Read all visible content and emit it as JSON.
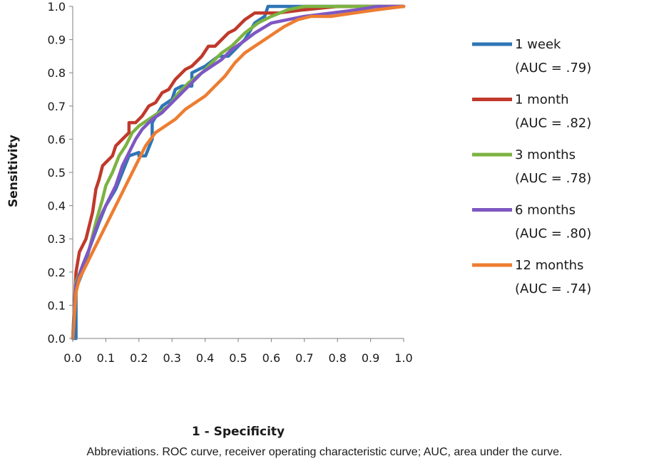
{
  "chart_data": {
    "type": "line",
    "title": "",
    "xlabel": "1 - Specificity",
    "ylabel": "Sensitivity",
    "xlim": [
      0,
      1
    ],
    "ylim": [
      0,
      1
    ],
    "x_ticks": [
      "0.0",
      "0.1",
      "0.2",
      "0.3",
      "0.4",
      "0.5",
      "0.6",
      "0.7",
      "0.8",
      "0.9",
      "1.0"
    ],
    "y_ticks": [
      "0.0",
      "0.1",
      "0.2",
      "0.3",
      "0.4",
      "0.5",
      "0.6",
      "0.7",
      "0.8",
      "0.9",
      "1.0"
    ],
    "grid": false,
    "legend_position": "right",
    "series": [
      {
        "name": "1 week",
        "auc_label": "(AUC = .79)",
        "color": "#2e75b6",
        "x": [
          0,
          0.01,
          0.01,
          0.03,
          0.05,
          0.08,
          0.1,
          0.13,
          0.15,
          0.17,
          0.2,
          0.2,
          0.22,
          0.24,
          0.24,
          0.27,
          0.3,
          0.31,
          0.33,
          0.36,
          0.36,
          0.4,
          0.44,
          0.47,
          0.5,
          0.52,
          0.55,
          0.58,
          0.59,
          0.62,
          0.7,
          0.8,
          0.9,
          1.0
        ],
        "y": [
          0,
          0,
          0.15,
          0.2,
          0.27,
          0.35,
          0.4,
          0.45,
          0.5,
          0.55,
          0.56,
          0.55,
          0.55,
          0.6,
          0.65,
          0.7,
          0.72,
          0.75,
          0.76,
          0.76,
          0.8,
          0.82,
          0.85,
          0.85,
          0.88,
          0.9,
          0.95,
          0.97,
          1.0,
          1.0,
          1.0,
          1.0,
          1.0,
          1.0
        ]
      },
      {
        "name": "1 month",
        "auc_label": "(AUC = .82)",
        "color": "#c0392b",
        "x": [
          0,
          0.01,
          0.02,
          0.04,
          0.06,
          0.07,
          0.08,
          0.09,
          0.1,
          0.12,
          0.13,
          0.15,
          0.17,
          0.17,
          0.19,
          0.21,
          0.23,
          0.25,
          0.27,
          0.29,
          0.31,
          0.33,
          0.34,
          0.36,
          0.39,
          0.41,
          0.43,
          0.45,
          0.47,
          0.49,
          0.52,
          0.55,
          0.58,
          0.62,
          0.7,
          0.8,
          0.9,
          1.0
        ],
        "y": [
          0,
          0.2,
          0.26,
          0.3,
          0.38,
          0.45,
          0.48,
          0.52,
          0.53,
          0.55,
          0.58,
          0.6,
          0.62,
          0.65,
          0.65,
          0.67,
          0.7,
          0.71,
          0.74,
          0.75,
          0.78,
          0.8,
          0.81,
          0.82,
          0.85,
          0.88,
          0.88,
          0.9,
          0.92,
          0.93,
          0.96,
          0.98,
          0.98,
          0.98,
          0.99,
          1.0,
          1.0,
          1.0
        ]
      },
      {
        "name": "3 months",
        "auc_label": "(AUC = .78)",
        "color": "#7cb342",
        "x": [
          0,
          0.01,
          0.03,
          0.05,
          0.07,
          0.09,
          0.1,
          0.12,
          0.14,
          0.16,
          0.18,
          0.2,
          0.23,
          0.26,
          0.29,
          0.32,
          0.35,
          0.39,
          0.42,
          0.45,
          0.48,
          0.52,
          0.56,
          0.6,
          0.65,
          0.7,
          0.8,
          0.9,
          1.0
        ],
        "y": [
          0,
          0.17,
          0.22,
          0.27,
          0.35,
          0.42,
          0.46,
          0.5,
          0.55,
          0.58,
          0.62,
          0.64,
          0.66,
          0.68,
          0.7,
          0.74,
          0.77,
          0.8,
          0.83,
          0.86,
          0.88,
          0.92,
          0.95,
          0.97,
          0.99,
          1.0,
          1.0,
          1.0,
          1.0
        ]
      },
      {
        "name": "6 months",
        "auc_label": "(AUC = .80)",
        "color": "#7e57c2",
        "x": [
          0,
          0.01,
          0.03,
          0.05,
          0.07,
          0.09,
          0.11,
          0.13,
          0.15,
          0.17,
          0.19,
          0.21,
          0.24,
          0.27,
          0.3,
          0.33,
          0.36,
          0.39,
          0.42,
          0.45,
          0.48,
          0.51,
          0.55,
          0.6,
          0.65,
          0.7,
          0.78,
          0.86,
          0.92,
          1.0
        ],
        "y": [
          0,
          0.16,
          0.22,
          0.27,
          0.33,
          0.38,
          0.42,
          0.46,
          0.52,
          0.56,
          0.6,
          0.63,
          0.66,
          0.68,
          0.71,
          0.74,
          0.77,
          0.8,
          0.82,
          0.84,
          0.87,
          0.89,
          0.92,
          0.95,
          0.96,
          0.97,
          0.98,
          0.99,
          1.0,
          1.0
        ]
      },
      {
        "name": "12 months",
        "auc_label": "(AUC = .74)",
        "color": "#ed7d31",
        "x": [
          0,
          0.01,
          0.02,
          0.04,
          0.06,
          0.08,
          0.1,
          0.12,
          0.14,
          0.16,
          0.18,
          0.2,
          0.22,
          0.25,
          0.28,
          0.31,
          0.34,
          0.37,
          0.4,
          0.43,
          0.46,
          0.49,
          0.52,
          0.55,
          0.58,
          0.61,
          0.64,
          0.68,
          0.72,
          0.78,
          0.85,
          0.92,
          1.0
        ],
        "y": [
          0,
          0.14,
          0.18,
          0.22,
          0.26,
          0.3,
          0.34,
          0.38,
          0.42,
          0.46,
          0.5,
          0.54,
          0.58,
          0.62,
          0.64,
          0.66,
          0.69,
          0.71,
          0.73,
          0.76,
          0.79,
          0.83,
          0.86,
          0.88,
          0.9,
          0.92,
          0.94,
          0.96,
          0.97,
          0.97,
          0.98,
          0.99,
          1.0
        ]
      }
    ]
  },
  "caption": "Abbreviations. ROC curve, receiver operating characteristic curve; AUC, area under the curve."
}
